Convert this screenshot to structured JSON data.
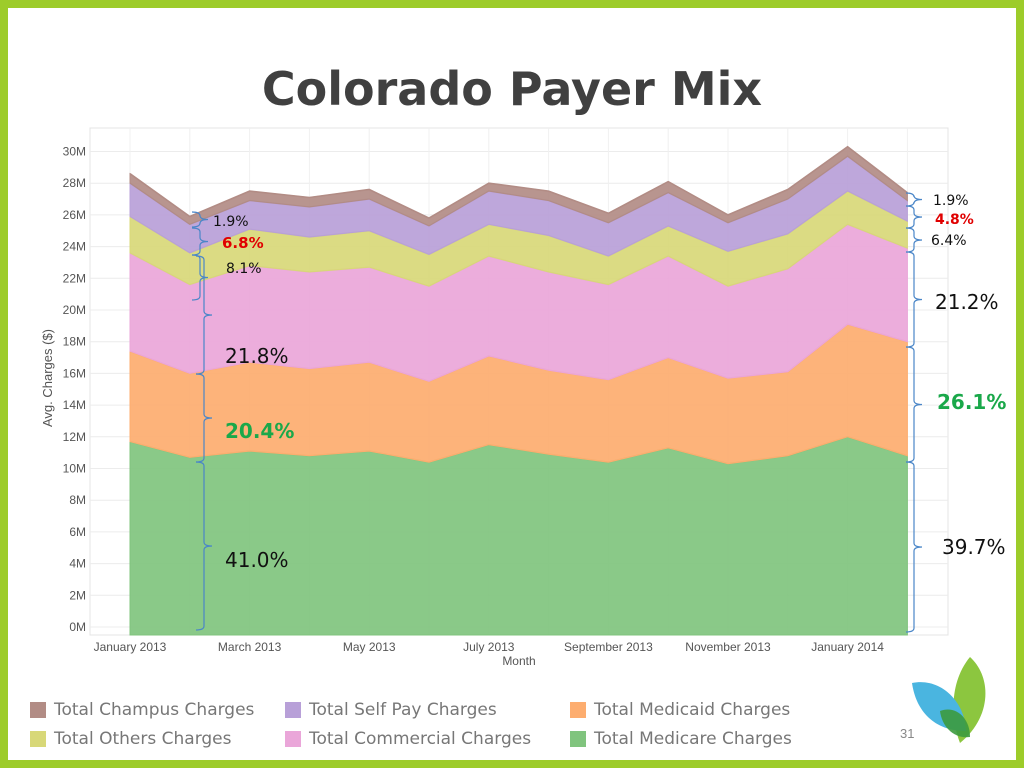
{
  "slide": {
    "title": "Colorado Payer Mix",
    "page_number": "31"
  },
  "colors": {
    "frame": "#9dcc2a",
    "champus": "#b28c85",
    "self_pay": "#b8a0d8",
    "others": "#d8d878",
    "commercial": "#eaa6d9",
    "medicaid": "#fdad6f",
    "medicare": "#80c47e",
    "bracket": "#4a86c8",
    "highlight_red": "#e00000",
    "highlight_green": "#1aa84a"
  },
  "legend": [
    {
      "label": "Total Champus Charges",
      "color": "#b28c85"
    },
    {
      "label": "Total Self Pay Charges",
      "color": "#b8a0d8"
    },
    {
      "label": "Total Medicaid Charges",
      "color": "#fdad6f"
    },
    {
      "label": "Total Others Charges",
      "color": "#d8d878"
    },
    {
      "label": "Total Commercial Charges",
      "color": "#eaa6d9"
    },
    {
      "label": "Total Medicare Charges",
      "color": "#80c47e"
    }
  ],
  "chart_data": {
    "type": "area",
    "stacked": true,
    "xlabel": "Month",
    "ylabel": "Avg. Charges ($)",
    "ylim": [
      0,
      31
    ],
    "yticks": [
      "0M",
      "2M",
      "4M",
      "6M",
      "8M",
      "10M",
      "12M",
      "14M",
      "16M",
      "18M",
      "20M",
      "22M",
      "24M",
      "26M",
      "28M",
      "30M"
    ],
    "xtick_labels": [
      "January 2013",
      "March 2013",
      "May 2013",
      "July 2013",
      "September 2013",
      "November 2013",
      "January 2014"
    ],
    "x": [
      "Jan 2013",
      "Feb 2013",
      "Mar 2013",
      "Apr 2013",
      "May 2013",
      "Jun 2013",
      "Jul 2013",
      "Aug 2013",
      "Sep 2013",
      "Oct 2013",
      "Nov 2013",
      "Dec 2013",
      "Jan 2014",
      "Feb 2014"
    ],
    "grid": true,
    "series": [
      {
        "name": "Total Medicare Charges",
        "values": [
          11.7,
          10.7,
          11.1,
          10.8,
          11.1,
          10.4,
          11.5,
          10.9,
          10.4,
          11.3,
          10.3,
          10.8,
          12.0,
          10.8
        ]
      },
      {
        "name": "Total Medicaid Charges",
        "values": [
          5.7,
          5.3,
          5.6,
          5.5,
          5.6,
          5.1,
          5.6,
          5.3,
          5.2,
          5.7,
          5.4,
          5.3,
          7.1,
          7.2
        ]
      },
      {
        "name": "Total Commercial Charges",
        "values": [
          6.2,
          5.6,
          6.1,
          6.1,
          6.0,
          6.0,
          6.3,
          6.2,
          6.0,
          6.4,
          5.8,
          6.5,
          6.3,
          5.9
        ]
      },
      {
        "name": "Total Others Charges",
        "values": [
          2.3,
          2.0,
          2.3,
          2.2,
          2.3,
          2.0,
          2.0,
          2.3,
          1.8,
          1.9,
          2.2,
          2.2,
          2.1,
          1.7
        ]
      },
      {
        "name": "Total Self Pay Charges",
        "values": [
          2.1,
          1.8,
          1.8,
          1.9,
          2.0,
          1.8,
          2.1,
          2.2,
          2.1,
          2.1,
          1.8,
          2.2,
          2.2,
          1.3
        ]
      },
      {
        "name": "Total Champus Charges",
        "values": [
          0.6,
          0.5,
          0.6,
          0.6,
          0.6,
          0.5,
          0.5,
          0.6,
          0.6,
          0.7,
          0.5,
          0.6,
          0.6,
          0.5
        ]
      }
    ],
    "annotations_left": [
      {
        "text": "1.9%",
        "style": "normal"
      },
      {
        "text": "6.8%",
        "style": "red"
      },
      {
        "text": "8.1%",
        "style": "normal"
      },
      {
        "text": "21.8%",
        "style": "normal"
      },
      {
        "text": "20.4%",
        "style": "green"
      },
      {
        "text": "41.0%",
        "style": "normal"
      }
    ],
    "annotations_right": [
      {
        "text": "1.9%",
        "style": "normal"
      },
      {
        "text": "4.8%",
        "style": "red"
      },
      {
        "text": "6.4%",
        "style": "normal"
      },
      {
        "text": "21.2%",
        "style": "normal"
      },
      {
        "text": "26.1%",
        "style": "green"
      },
      {
        "text": "39.7%",
        "style": "normal"
      }
    ]
  }
}
